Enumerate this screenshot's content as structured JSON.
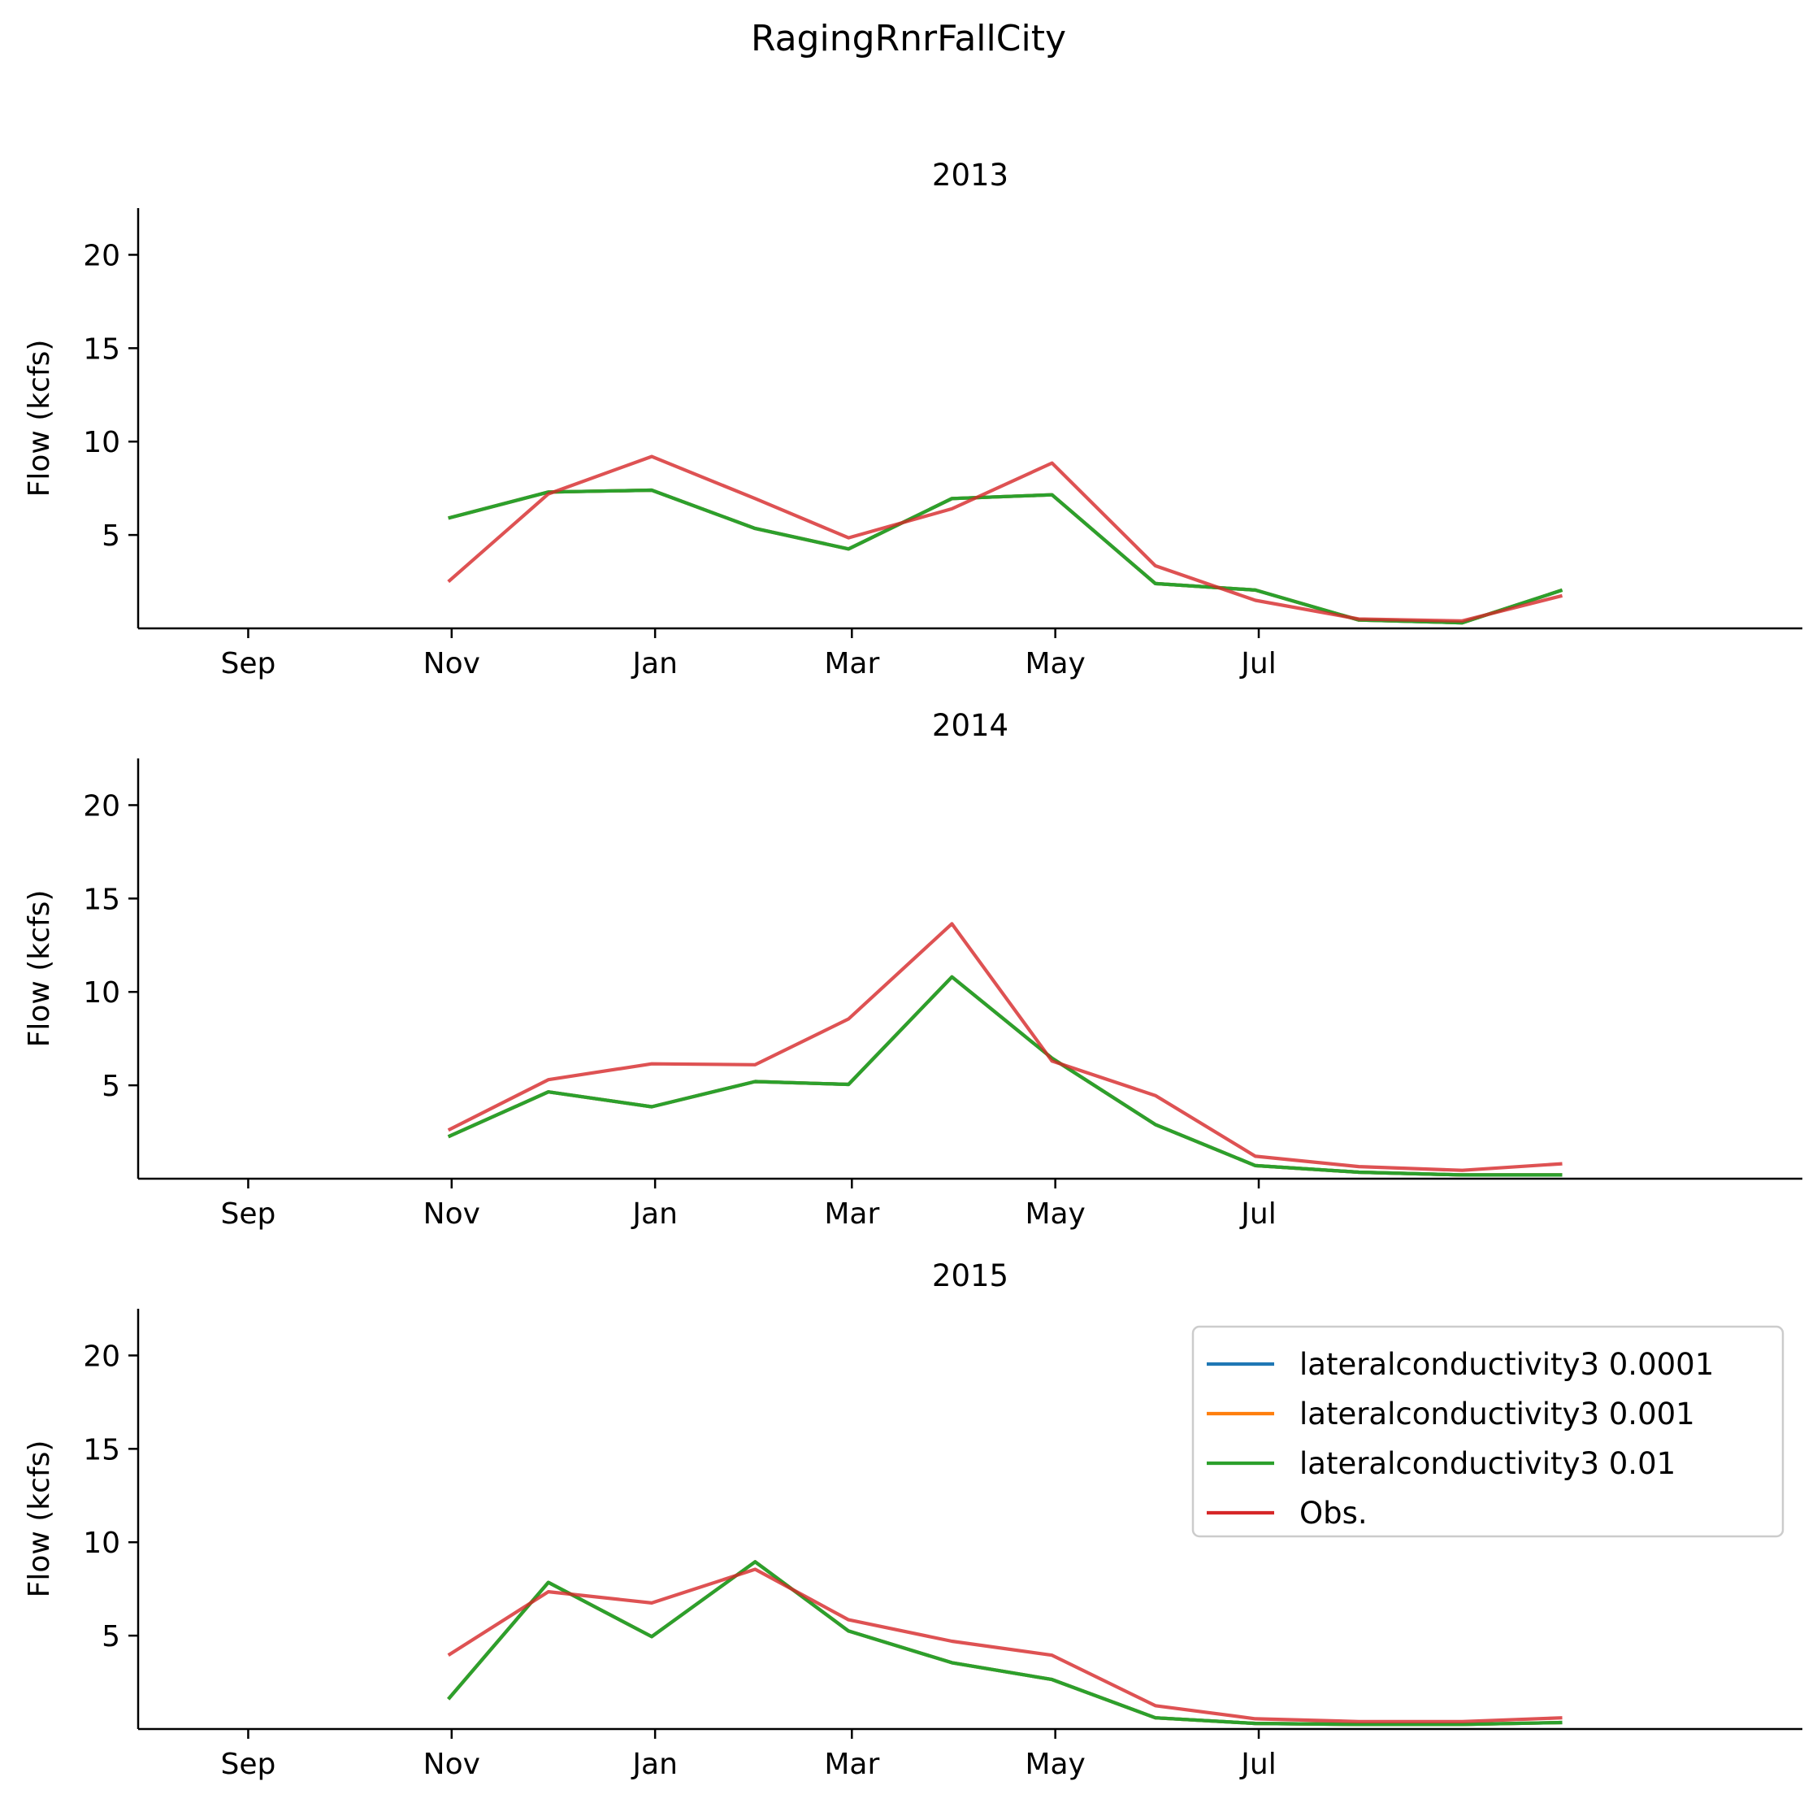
{
  "figure": {
    "suptitle": "RagingRnrFallCity"
  },
  "chart_data": [
    {
      "type": "line",
      "title": "2013",
      "ylabel": "Flow (kcfs)",
      "xlabel": "",
      "ylim": [
        0,
        22.5
      ],
      "yticks": [
        5,
        10,
        15,
        20
      ],
      "xticks": [
        "Nov",
        "Jan",
        "Mar",
        "May",
        "Jul",
        "Sep"
      ],
      "x": [
        "2012-10-31",
        "2012-11-30",
        "2012-12-31",
        "2013-01-31",
        "2013-02-28",
        "2013-03-31",
        "2013-04-30",
        "2013-05-31",
        "2013-06-30",
        "2013-07-31",
        "2013-08-31",
        "2013-09-30"
      ],
      "series": [
        {
          "name": "lateralconductivity3 0.0001",
          "color": "#1f77b4",
          "values": [
            5.9,
            7.3,
            7.4,
            5.35,
            4.25,
            6.95,
            7.15,
            2.4,
            2.05,
            0.45,
            0.3,
            2.05
          ]
        },
        {
          "name": "lateralconductivity3 0.001",
          "color": "#ff7f0e",
          "values": [
            5.9,
            7.3,
            7.4,
            5.35,
            4.25,
            6.95,
            7.15,
            2.4,
            2.05,
            0.45,
            0.3,
            2.05
          ]
        },
        {
          "name": "lateralconductivity3 0.01",
          "color": "#2ca02c",
          "values": [
            5.9,
            7.3,
            7.4,
            5.35,
            4.25,
            6.95,
            7.15,
            2.4,
            2.05,
            0.45,
            0.3,
            2.05
          ]
        },
        {
          "name": "Obs.",
          "color": "#d62728",
          "values": [
            2.5,
            7.2,
            9.2,
            6.95,
            4.85,
            6.4,
            8.85,
            3.35,
            1.5,
            0.5,
            0.4,
            1.75
          ]
        }
      ]
    },
    {
      "type": "line",
      "title": "2014",
      "ylabel": "Flow (kcfs)",
      "xlabel": "",
      "ylim": [
        0,
        22.5
      ],
      "yticks": [
        5,
        10,
        15,
        20
      ],
      "xticks": [
        "Nov",
        "Jan",
        "Mar",
        "May",
        "Jul",
        "Sep"
      ],
      "x": [
        "2013-10-31",
        "2013-11-30",
        "2013-12-31",
        "2014-01-31",
        "2014-02-28",
        "2014-03-31",
        "2014-04-30",
        "2014-05-31",
        "2014-06-30",
        "2014-07-31",
        "2014-08-31",
        "2014-09-30"
      ],
      "series": [
        {
          "name": "lateralconductivity3 0.0001",
          "color": "#1f77b4",
          "values": [
            2.25,
            4.65,
            3.85,
            5.2,
            5.05,
            10.8,
            6.45,
            2.9,
            0.7,
            0.35,
            0.2,
            0.2
          ]
        },
        {
          "name": "lateralconductivity3 0.001",
          "color": "#ff7f0e",
          "values": [
            2.25,
            4.65,
            3.85,
            5.2,
            5.05,
            10.8,
            6.45,
            2.9,
            0.7,
            0.35,
            0.2,
            0.2
          ]
        },
        {
          "name": "lateralconductivity3 0.01",
          "color": "#2ca02c",
          "values": [
            2.25,
            4.65,
            3.85,
            5.2,
            5.05,
            10.8,
            6.45,
            2.9,
            0.7,
            0.35,
            0.2,
            0.2
          ]
        },
        {
          "name": "Obs.",
          "color": "#d62728",
          "values": [
            2.6,
            5.3,
            6.15,
            6.1,
            8.55,
            13.65,
            6.3,
            4.45,
            1.2,
            0.65,
            0.45,
            0.8
          ]
        }
      ]
    },
    {
      "type": "line",
      "title": "2015",
      "ylabel": "Flow (kcfs)",
      "xlabel": "",
      "ylim": [
        0,
        22.5
      ],
      "yticks": [
        5,
        10,
        15,
        20
      ],
      "xticks": [
        "Nov",
        "Jan",
        "Mar",
        "May",
        "Jul",
        "Sep"
      ],
      "x": [
        "2014-10-31",
        "2014-11-30",
        "2014-12-31",
        "2015-01-31",
        "2015-02-28",
        "2015-03-31",
        "2015-04-30",
        "2015-05-31",
        "2015-06-30",
        "2015-07-31",
        "2015-08-31",
        "2015-09-30"
      ],
      "series": [
        {
          "name": "lateralconductivity3 0.0001",
          "color": "#1f77b4",
          "values": [
            1.6,
            7.85,
            4.95,
            8.95,
            5.25,
            3.55,
            2.65,
            0.6,
            0.3,
            0.25,
            0.25,
            0.35
          ]
        },
        {
          "name": "lateralconductivity3 0.001",
          "color": "#ff7f0e",
          "values": [
            1.6,
            7.85,
            4.95,
            8.95,
            5.25,
            3.55,
            2.65,
            0.6,
            0.3,
            0.25,
            0.25,
            0.35
          ]
        },
        {
          "name": "lateralconductivity3 0.01",
          "color": "#2ca02c",
          "values": [
            1.6,
            7.85,
            4.95,
            8.95,
            5.25,
            3.55,
            2.65,
            0.6,
            0.3,
            0.25,
            0.25,
            0.35
          ]
        },
        {
          "name": "Obs.",
          "color": "#d62728",
          "values": [
            3.95,
            7.35,
            6.75,
            8.55,
            5.85,
            4.7,
            3.95,
            1.25,
            0.55,
            0.4,
            0.4,
            0.6
          ]
        }
      ],
      "legend": {
        "placement": "upper right",
        "entries": [
          "lateralconductivity3 0.0001",
          "lateralconductivity3 0.001",
          "lateralconductivity3 0.01",
          "Obs."
        ]
      }
    }
  ]
}
